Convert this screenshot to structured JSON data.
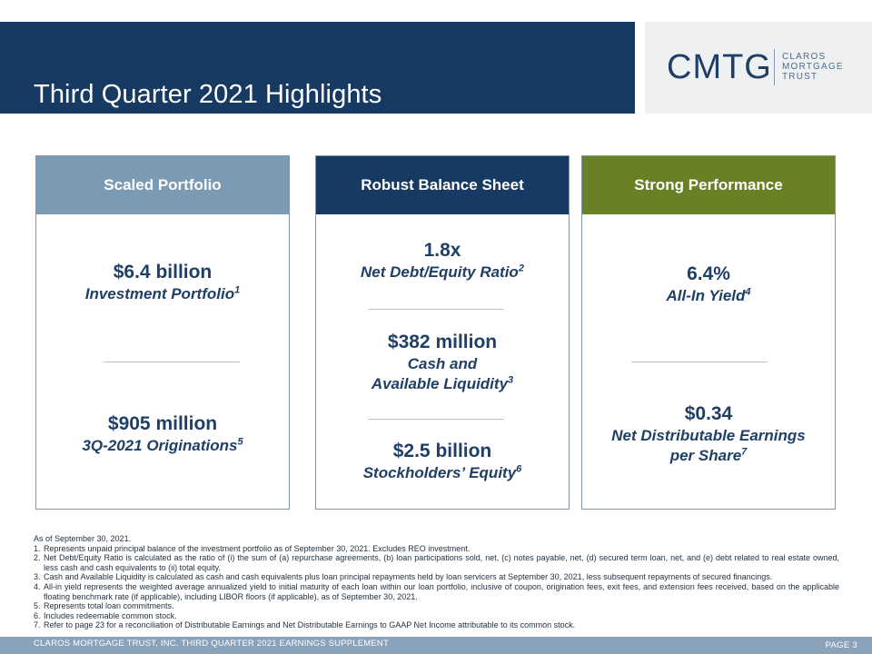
{
  "title": "Third Quarter 2021 Highlights",
  "logo": {
    "mark": "CMTG",
    "words": [
      "CLAROS",
      "MORTGAGE",
      "TRUST"
    ]
  },
  "columns": [
    {
      "header": "Scaled Portfolio",
      "color": "#7b9bb4",
      "metrics": [
        {
          "value": "$6.4 billion",
          "label": "Investment Portfolio",
          "footnote": "1"
        },
        {
          "value": "$905 million",
          "label": "3Q-2021 Originations",
          "footnote": "5"
        }
      ]
    },
    {
      "header": "Robust Balance Sheet",
      "color": "#173a63",
      "metrics": [
        {
          "value": "1.8x",
          "label": "Net Debt/Equity Ratio",
          "footnote": "2"
        },
        {
          "value": "$382 million",
          "label_line1": "Cash and",
          "label": "Available Liquidity",
          "footnote": "3"
        },
        {
          "value": "$2.5 billion",
          "label": "Stockholders’ Equity",
          "footnote": "6"
        }
      ]
    },
    {
      "header": "Strong Performance",
      "color": "#6a8025",
      "metrics": [
        {
          "value": "6.4%",
          "label": "All-In Yield",
          "footnote": "4"
        },
        {
          "value": "$0.34",
          "label_line1": "Net Distributable Earnings",
          "label": "per Share",
          "footnote": "7"
        }
      ]
    }
  ],
  "notes": {
    "intro": "As of September 30, 2021.",
    "items": [
      {
        "num": "1.",
        "text": "Represents unpaid principal balance of the investment portfolio as of September 30, 2021. Excludes REO investment."
      },
      {
        "num": "2.",
        "text": "Net Debt/Equity Ratio is calculated as the ratio of (i) the sum of (a) repurchase agreements, (b) loan participations sold, net, (c) notes payable, net, (d) secured term loan, net, and (e) debt related to real estate owned, less cash and cash equivalents to (ii) total equity."
      },
      {
        "num": "3.",
        "text": "Cash and Available Liquidity is calculated as cash and cash equivalents plus loan principal repayments held by loan servicers at September 30, 2021, less subsequent repayments of secured financings."
      },
      {
        "num": "4.",
        "text": "All-in yield represents the weighted average annualized yield to initial maturity of each loan within our loan portfolio, inclusive of coupon, origination fees, exit fees, and extension fees received, based on the applicable floating benchmark rate (if applicable), including LIBOR floors (if applicable), as of September 30, 2021."
      },
      {
        "num": "5.",
        "text": "Represents total loan commitments."
      },
      {
        "num": "6.",
        "text": "Includes redeemable common stock."
      },
      {
        "num": "7.",
        "text": "Refer to page 23 for a reconciliation of Distributable Earnings and Net Distributable Earnings to GAAP Net Income attributable to its common stock."
      }
    ]
  },
  "footer": {
    "text": "CLAROS MORTGAGE TRUST, INC. THIRD QUARTER 2021 EARNINGS SUPPLEMENT",
    "page": "PAGE 3"
  }
}
